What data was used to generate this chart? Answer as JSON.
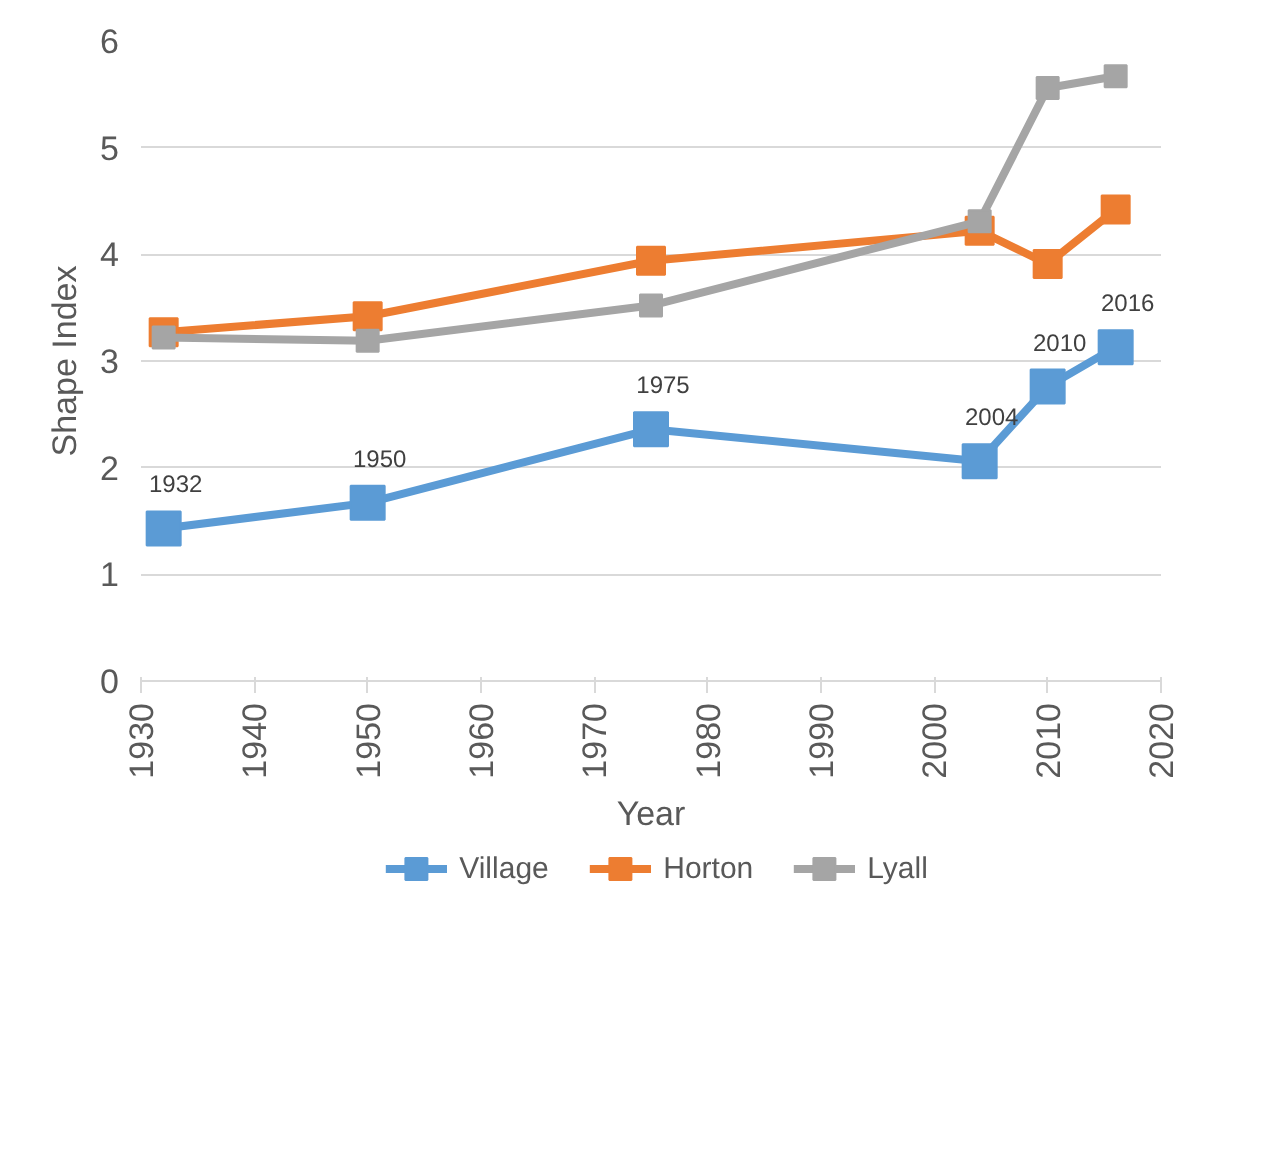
{
  "chart_data": {
    "type": "line",
    "xlabel": "Year",
    "ylabel": "Shape Index",
    "x": [
      1932,
      1950,
      1975,
      2004,
      2010,
      2016
    ],
    "series": [
      {
        "name": "Village",
        "color": "#5b9bd5",
        "values": [
          1.43,
          1.67,
          2.36,
          2.06,
          2.76,
          3.13
        ]
      },
      {
        "name": "Horton",
        "color": "#ed7d31",
        "values": [
          3.27,
          3.42,
          3.94,
          4.22,
          3.91,
          4.42
        ]
      },
      {
        "name": "Lyall",
        "color": "#a5a5a5",
        "values": [
          3.22,
          3.19,
          3.52,
          4.31,
          5.56,
          5.67
        ]
      }
    ],
    "annotations": [
      {
        "text": "1932",
        "x": 1932,
        "y": 1.43
      },
      {
        "text": "1950",
        "x": 1950,
        "y": 1.67
      },
      {
        "text": "1975",
        "x": 1975,
        "y": 2.36
      },
      {
        "text": "2004",
        "x": 2004,
        "y": 2.06
      },
      {
        "text": "2010",
        "x": 2010,
        "y": 2.76
      },
      {
        "text": "2016",
        "x": 2016,
        "y": 3.13
      }
    ],
    "xlim": [
      1930,
      2020
    ],
    "xticks": [
      1930,
      1940,
      1950,
      1960,
      1970,
      1980,
      1990,
      2000,
      2010,
      2020
    ],
    "ylim": [
      0,
      6
    ],
    "yticks": [
      0,
      1,
      2,
      3,
      4,
      5,
      6
    ],
    "grid": "y",
    "legend": "bottom",
    "marker": "square",
    "line_style": "solid"
  }
}
